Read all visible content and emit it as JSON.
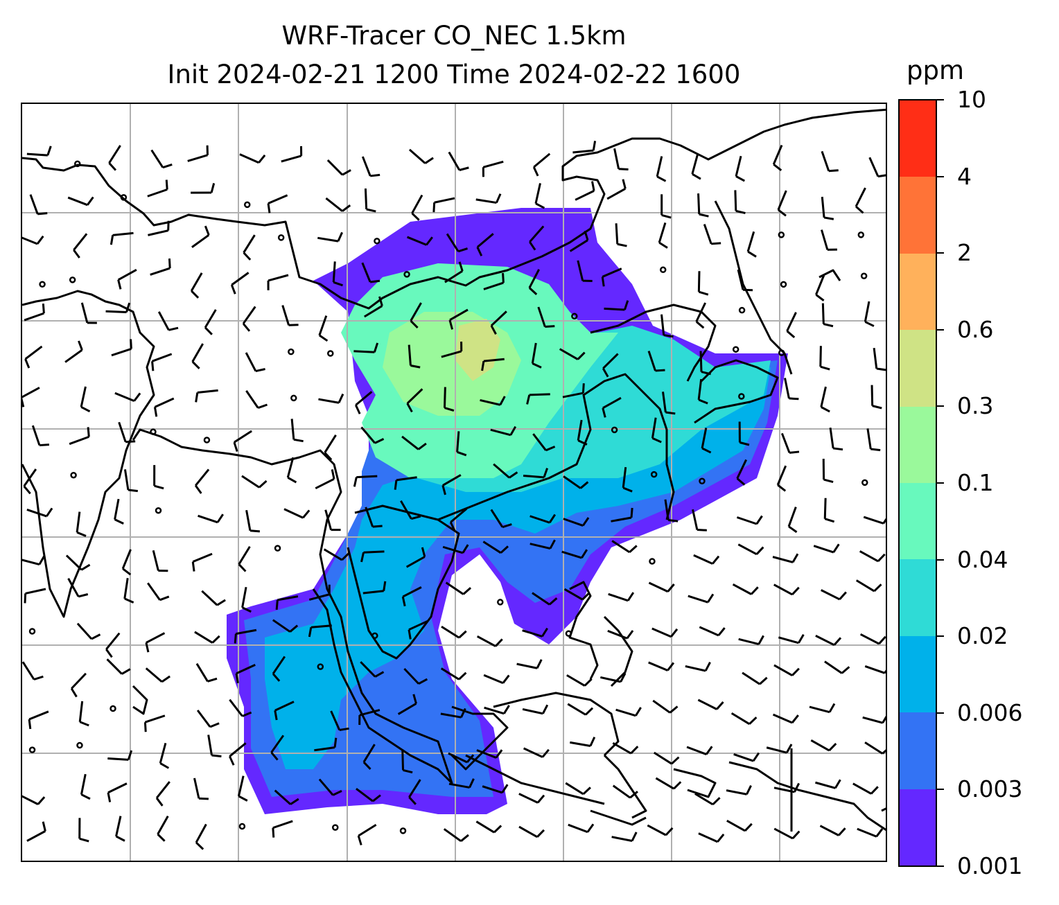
{
  "title": {
    "line1": "WRF-Tracer CO_NEC 1.5km",
    "line2": "Init 2024-02-21 1200 Time 2024-02-22 1600"
  },
  "colorbar": {
    "unit": "ppm",
    "ticks": [
      "0.001",
      "0.003",
      "0.006",
      "0.02",
      "0.04",
      "0.1",
      "0.3",
      "0.6",
      "2",
      "4",
      "10"
    ],
    "colors": [
      "#6428ff",
      "#3373f4",
      "#00b1ea",
      "#2fdbd6",
      "#68f9bd",
      "#9af99b",
      "#cfe385",
      "#ffb15b",
      "#ff7337",
      "#ff2e16"
    ]
  },
  "map": {
    "grid": "on",
    "features": [
      "coastlines",
      "country-borders",
      "wind-barbs",
      "tracer-concentration-fill"
    ]
  }
}
